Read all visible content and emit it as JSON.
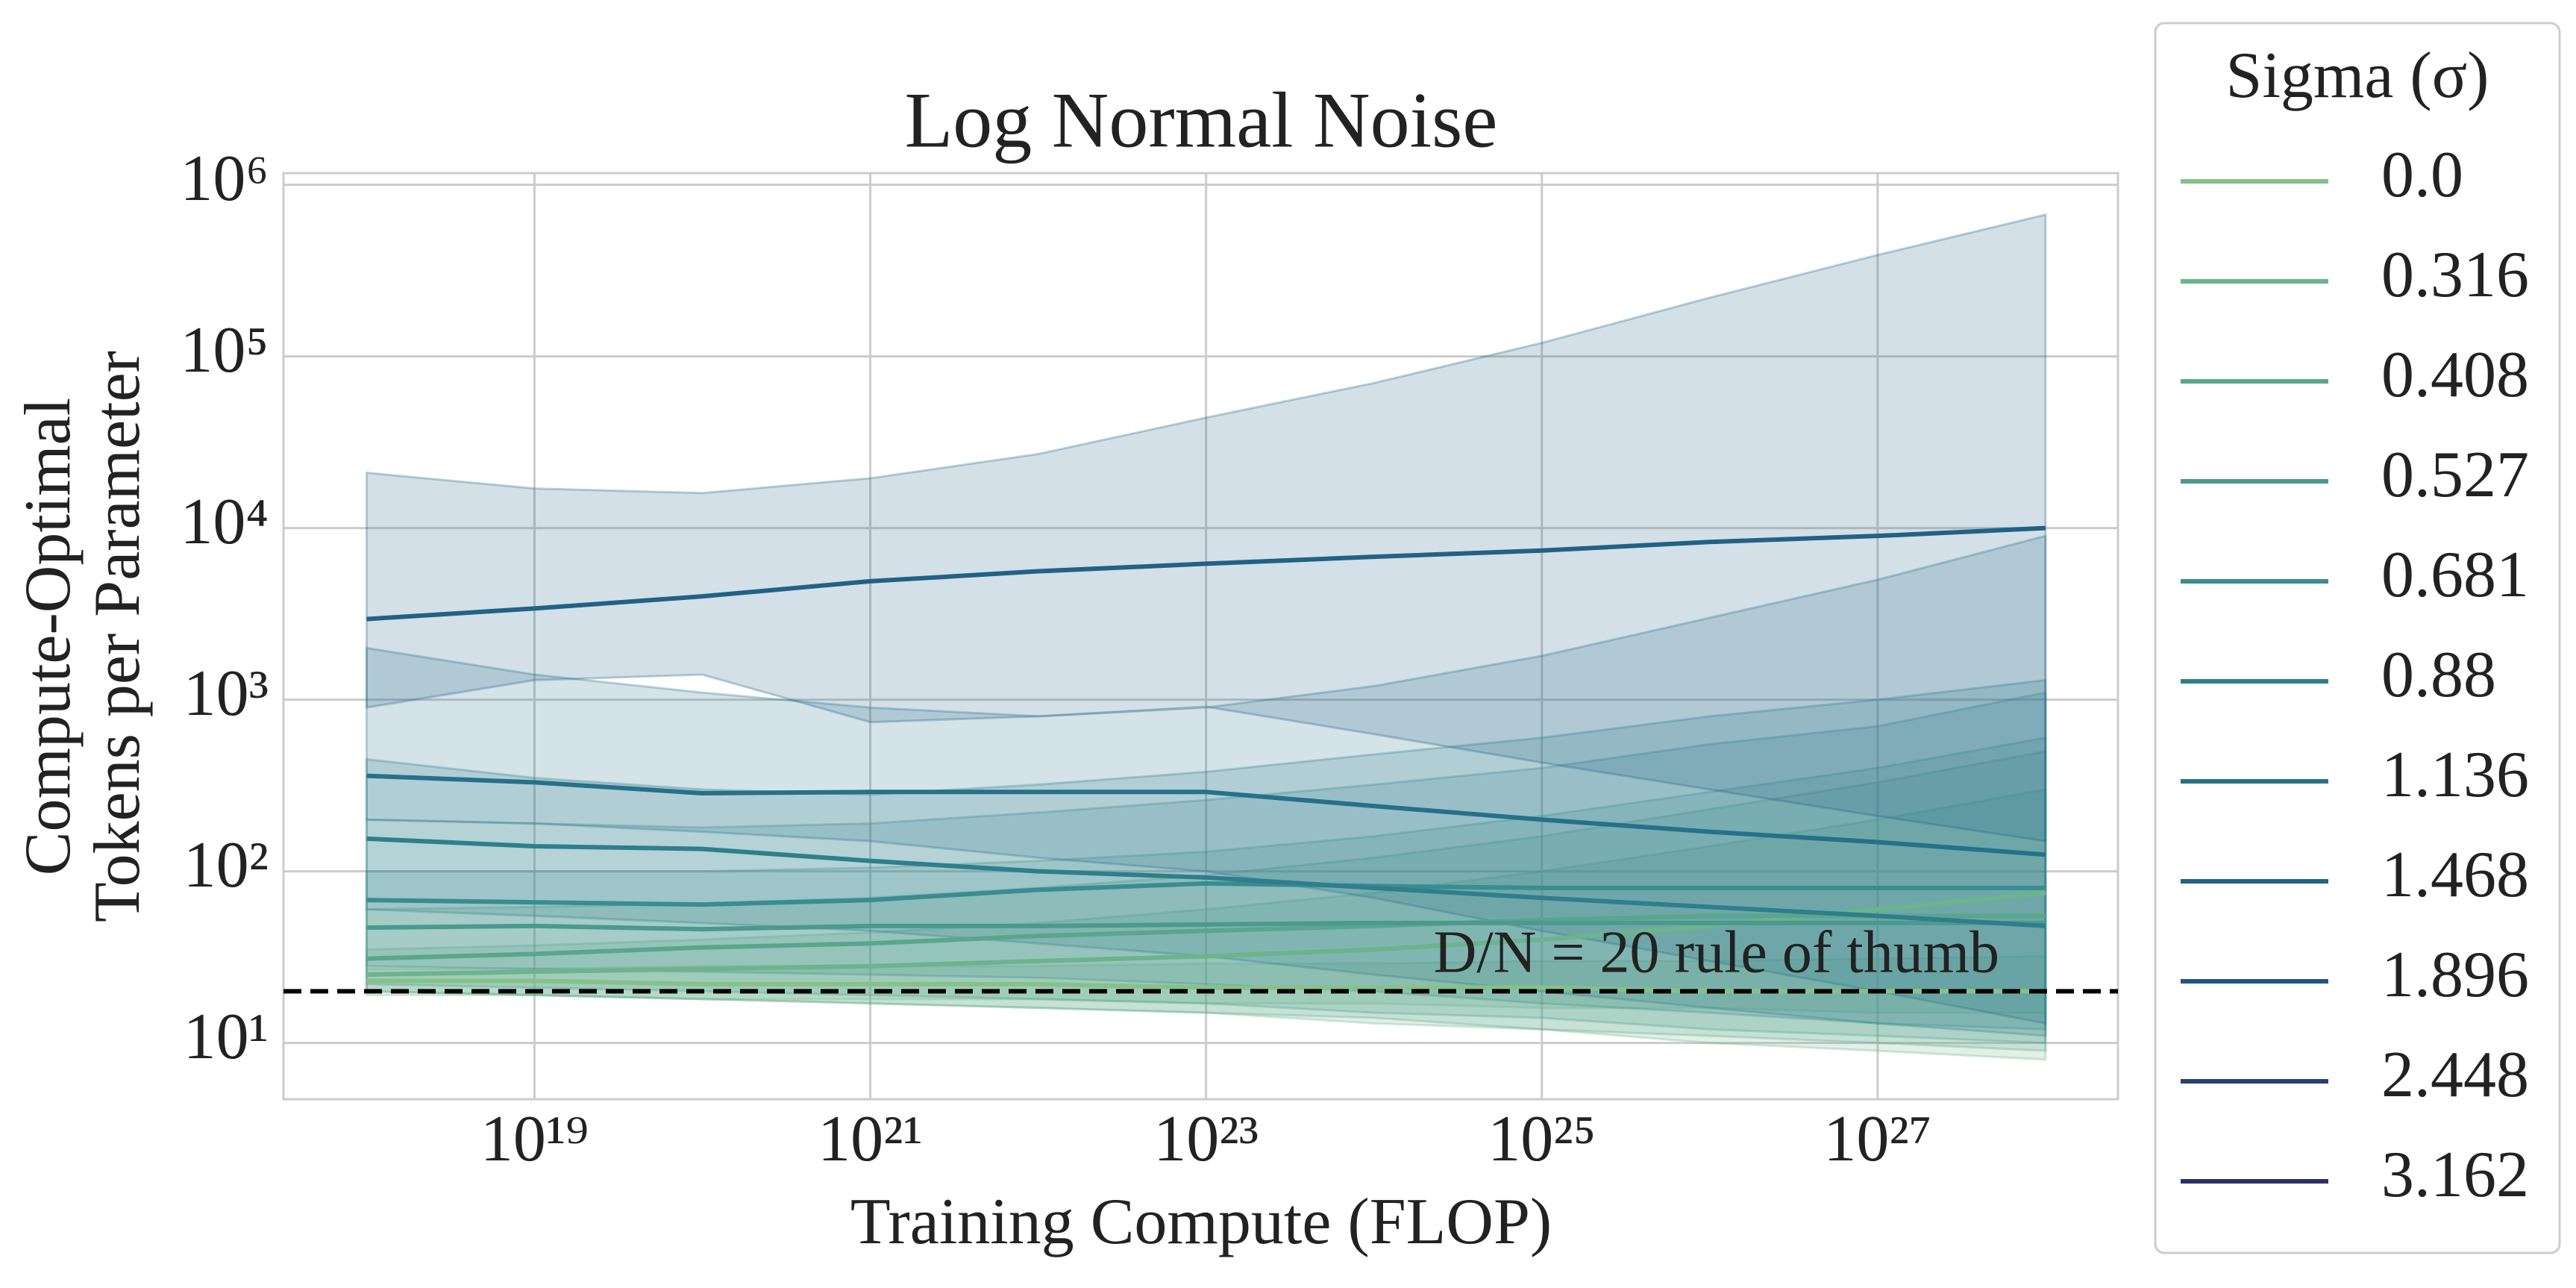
{
  "chart_data": {
    "type": "line",
    "title": "Log Normal Noise",
    "xlabel": "Training Compute (FLOP)",
    "ylabel": [
      "Compute-Optimal",
      "Tokens per Parameter"
    ],
    "log_x": true,
    "log_y": true,
    "grid": true,
    "xlim": [
      3.2e+17,
      2.7e+28
    ],
    "ylim": [
      4.7,
      1170000
    ],
    "xticks": [
      {
        "value": 1e+19,
        "label": "10¹⁹"
      },
      {
        "value": 1e+21,
        "label": "10²¹"
      },
      {
        "value": 1e+23,
        "label": "10²³"
      },
      {
        "value": 1e+25,
        "label": "10²⁵"
      },
      {
        "value": 1e+27,
        "label": "10²⁷"
      }
    ],
    "yticks": [
      {
        "value": 10,
        "label": "10¹"
      },
      {
        "value": 100,
        "label": "10²"
      },
      {
        "value": 1000,
        "label": "10³"
      },
      {
        "value": 10000,
        "label": "10⁴"
      },
      {
        "value": 100000,
        "label": "10⁵"
      },
      {
        "value": 1000000,
        "label": "10⁶"
      }
    ],
    "x": [
      1e+18,
      1e+19,
      1e+20,
      1e+21,
      1e+22,
      1e+23,
      1e+24,
      1e+25,
      1e+26,
      1e+27,
      1e+28
    ],
    "legend_title": "Sigma (σ)",
    "legend": "outside right",
    "reference_line": {
      "y": 20,
      "color": "#000000",
      "style": "dashed",
      "label": "D/N = 20 rule of thumb"
    },
    "series": [
      {
        "name": "0.0",
        "color": "#86c18a",
        "values": [
          23,
          23,
          22,
          22,
          22,
          21,
          21,
          21,
          20,
          20,
          20
        ],
        "lower": [
          19,
          19,
          18,
          18,
          18,
          17,
          17,
          16,
          16,
          15,
          15
        ],
        "upper": [
          27,
          27,
          28,
          28,
          28,
          29,
          29,
          30,
          30,
          31,
          32
        ]
      },
      {
        "name": "0.316",
        "color": "#6cb48c",
        "values": [
          25,
          26,
          27,
          28,
          30,
          32,
          35,
          40,
          48,
          60,
          75
        ],
        "lower": [
          20,
          19,
          18,
          17,
          16,
          15,
          13,
          12,
          10,
          9,
          8
        ],
        "upper": [
          35,
          37,
          40,
          44,
          50,
          60,
          75,
          100,
          140,
          200,
          300
        ]
      },
      {
        "name": "0.408",
        "color": "#5aa68d",
        "values": [
          31,
          33,
          36,
          38,
          42,
          45,
          48,
          52,
          55,
          55,
          55
        ],
        "lower": [
          20,
          19,
          18,
          17,
          16,
          15,
          14,
          12,
          11,
          10,
          9
        ],
        "upper": [
          60,
          62,
          65,
          70,
          80,
          95,
          120,
          160,
          230,
          330,
          500
        ]
      },
      {
        "name": "0.527",
        "color": "#4a9a8e",
        "values": [
          47,
          48,
          46,
          48,
          48,
          49,
          50,
          50,
          50,
          50,
          50
        ],
        "lower": [
          22,
          21,
          20,
          19,
          18,
          17,
          15,
          14,
          12,
          11,
          10
        ],
        "upper": [
          100,
          100,
          100,
          105,
          115,
          130,
          160,
          210,
          290,
          400,
          600
        ]
      },
      {
        "name": "0.681",
        "color": "#3a8d8f",
        "values": [
          68,
          66,
          64,
          68,
          78,
          85,
          82,
          80,
          80,
          80,
          80
        ],
        "lower": [
          28,
          27,
          26,
          25,
          24,
          22,
          20,
          17,
          15,
          13,
          12
        ],
        "upper": [
          200,
          190,
          180,
          190,
          220,
          260,
          320,
          400,
          550,
          700,
          1100
        ]
      },
      {
        "name": "0.88",
        "color": "#2e7f8c",
        "values": [
          155,
          140,
          135,
          115,
          100,
          92,
          80,
          70,
          62,
          55,
          48
        ],
        "lower": [
          60,
          55,
          50,
          45,
          38,
          32,
          25,
          20,
          16,
          13,
          11
        ],
        "upper": [
          450,
          350,
          300,
          280,
          320,
          380,
          480,
          600,
          800,
          1000,
          1300
        ]
      },
      {
        "name": "1.136",
        "color": "#26718a",
        "values": [
          360,
          330,
          285,
          290,
          290,
          290,
          240,
          200,
          170,
          148,
          125
        ],
        "lower": [
          200,
          190,
          170,
          150,
          120,
          100,
          70,
          45,
          30,
          20,
          13
        ],
        "upper": [
          2000,
          1400,
          1100,
          900,
          800,
          900,
          1200,
          1800,
          3000,
          5000,
          9000
        ]
      },
      {
        "name": "1.468",
        "color": "#216287",
        "values": [
          2950,
          3400,
          4000,
          4900,
          5600,
          6200,
          6800,
          7400,
          8300,
          9000,
          10000
        ],
        "lower": [
          900,
          1300,
          1400,
          740,
          800,
          910,
          630,
          430,
          300,
          210,
          150
        ],
        "upper": [
          21000,
          17000,
          16000,
          19500,
          27000,
          44000,
          70000,
          120000,
          220000,
          390000,
          670000
        ]
      },
      {
        "name": "1.896",
        "color": "#205484",
        "values": [
          null,
          null,
          null,
          null,
          null,
          null,
          null,
          null,
          null,
          null,
          null
        ]
      },
      {
        "name": "2.448",
        "color": "#263f76",
        "values": [
          null,
          null,
          null,
          null,
          null,
          null,
          null,
          null,
          null,
          null,
          null
        ]
      },
      {
        "name": "3.162",
        "color": "#2c2f6a",
        "values": [
          null,
          null,
          null,
          null,
          null,
          null,
          null,
          null,
          null,
          null,
          null
        ]
      }
    ]
  }
}
